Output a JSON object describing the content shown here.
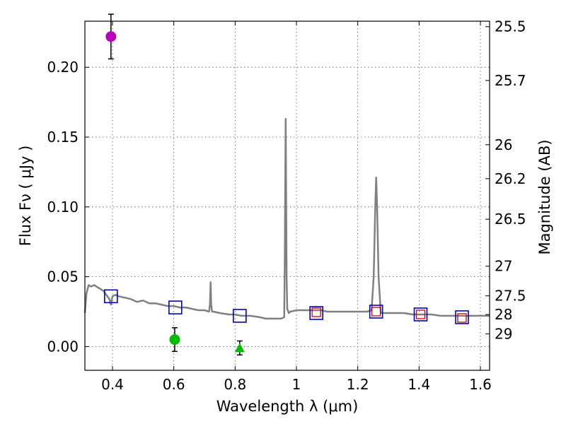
{
  "chart_data": {
    "type": "scatter",
    "xlabel": "Wavelength  λ (μm)",
    "ylabel": "Flux  Fν  ( μJy )",
    "y2label": "Magnitude (AB)",
    "xlim": [
      0.31,
      1.63
    ],
    "ylim": [
      -0.017,
      0.233
    ],
    "grid": true,
    "x_ticks": [
      0.4,
      0.6,
      0.8,
      1.0,
      1.2,
      1.4,
      1.6
    ],
    "x_tick_labels": [
      "0.4",
      "0.6",
      "0.8",
      "1",
      "1.2",
      "1.4",
      "1.6"
    ],
    "y_ticks": [
      0.0,
      0.05,
      0.1,
      0.15,
      0.2
    ],
    "y_tick_labels": [
      "0.00",
      "0.05",
      "0.10",
      "0.15",
      "0.20"
    ],
    "mag_ticks": [
      25.5,
      25.7,
      26,
      26.2,
      26.5,
      27,
      27.5,
      28,
      29
    ],
    "mag_tick_labels": [
      "25.5",
      "25.7",
      "26",
      "26.2",
      "26.5",
      "27",
      "27.5",
      "28",
      "29"
    ],
    "model_spectrum": {
      "name": "SED model",
      "color": "#808080",
      "x": [
        0.31,
        0.315,
        0.322,
        0.33,
        0.34,
        0.355,
        0.37,
        0.38,
        0.39,
        0.395,
        0.4,
        0.41,
        0.42,
        0.44,
        0.46,
        0.48,
        0.5,
        0.52,
        0.54,
        0.56,
        0.58,
        0.6,
        0.62,
        0.64,
        0.66,
        0.68,
        0.7,
        0.715,
        0.718,
        0.72,
        0.722,
        0.725,
        0.73,
        0.75,
        0.78,
        0.8,
        0.82,
        0.85,
        0.88,
        0.9,
        0.92,
        0.95,
        0.96,
        0.962,
        0.965,
        0.968,
        0.97,
        0.975,
        0.98,
        1.0,
        1.03,
        1.06,
        1.08,
        1.1,
        1.13,
        1.16,
        1.19,
        1.21,
        1.23,
        1.245,
        1.252,
        1.257,
        1.26,
        1.263,
        1.268,
        1.275,
        1.29,
        1.32,
        1.35,
        1.38,
        1.41,
        1.44,
        1.47,
        1.5,
        1.53,
        1.56,
        1.6,
        1.63
      ],
      "y": [
        0.024,
        0.038,
        0.044,
        0.043,
        0.044,
        0.042,
        0.04,
        0.037,
        0.034,
        0.03,
        0.036,
        0.037,
        0.036,
        0.035,
        0.034,
        0.032,
        0.033,
        0.031,
        0.031,
        0.03,
        0.029,
        0.029,
        0.028,
        0.028,
        0.027,
        0.026,
        0.026,
        0.025,
        0.03,
        0.046,
        0.03,
        0.025,
        0.025,
        0.024,
        0.023,
        0.023,
        0.022,
        0.022,
        0.021,
        0.02,
        0.02,
        0.02,
        0.021,
        0.06,
        0.163,
        0.05,
        0.027,
        0.024,
        0.025,
        0.026,
        0.026,
        0.026,
        0.026,
        0.025,
        0.025,
        0.025,
        0.025,
        0.025,
        0.025,
        0.026,
        0.05,
        0.1,
        0.121,
        0.1,
        0.05,
        0.024,
        0.024,
        0.024,
        0.024,
        0.023,
        0.023,
        0.023,
        0.022,
        0.022,
        0.022,
        0.022,
        0.022,
        0.022
      ]
    },
    "model_photometry": {
      "name": "model band fluxes",
      "marker": "open-square",
      "color": "#0000cc",
      "x": [
        0.395,
        0.605,
        0.815,
        1.065,
        1.26,
        1.405,
        1.54
      ],
      "y": [
        0.036,
        0.028,
        0.022,
        0.024,
        0.025,
        0.023,
        0.021
      ]
    },
    "observed_photometry": {
      "name": "observed band fluxes",
      "marker": "small-open-square",
      "color": "#cc0000",
      "x": [
        1.065,
        1.26,
        1.405,
        1.54
      ],
      "y": [
        0.0245,
        0.025,
        0.023,
        0.0205
      ]
    },
    "detections": [
      {
        "name": "violet point",
        "x": 0.395,
        "y": 0.222,
        "err": 0.016,
        "color": "#bb00bb",
        "marker": "circle"
      },
      {
        "name": "green point",
        "x": 0.603,
        "y": 0.005,
        "err": 0.0085,
        "color": "#00bb00",
        "marker": "circle"
      },
      {
        "name": "green upper limit",
        "x": 0.815,
        "y": -0.001,
        "err": 0.005,
        "color": "#00bb00",
        "marker": "triangle"
      }
    ]
  }
}
